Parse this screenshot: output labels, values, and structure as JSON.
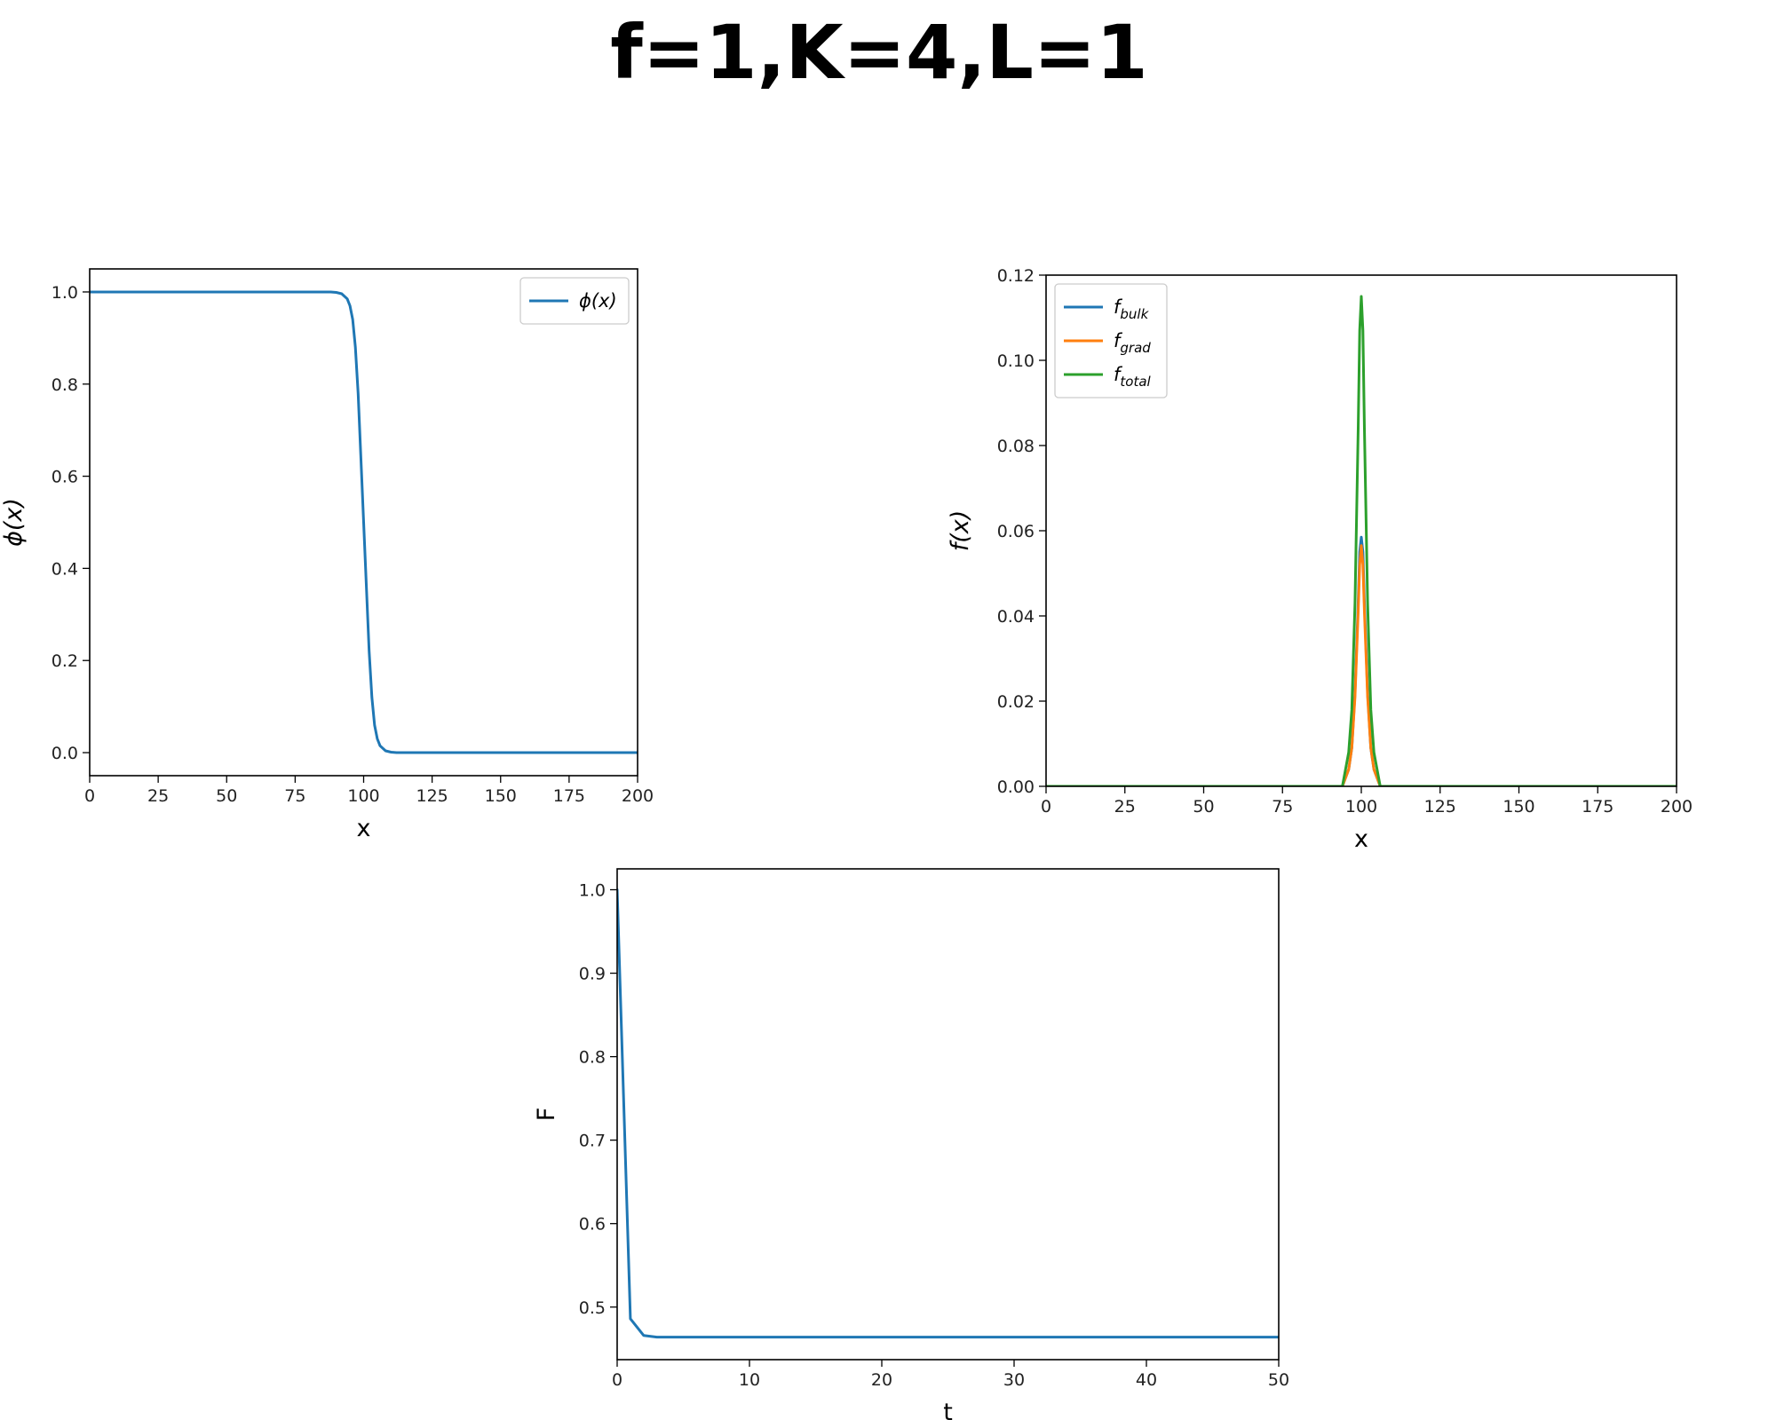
{
  "title": "f=1,K=4,L=1",
  "colors": {
    "blue": "#1f77b4",
    "orange": "#ff7f0e",
    "green": "#2ca02c"
  },
  "chart_data": [
    {
      "id": "phi",
      "type": "line",
      "xlabel": "x",
      "ylabel": "ϕ(x)",
      "xlim": [
        0,
        200
      ],
      "ylim": [
        -0.05,
        1.05
      ],
      "xticks": [
        0,
        25,
        50,
        75,
        100,
        125,
        150,
        175,
        200
      ],
      "xtick_labels": [
        "0",
        "25",
        "50",
        "75",
        "100",
        "125",
        "150",
        "175",
        "200"
      ],
      "yticks": [
        0.0,
        0.2,
        0.4,
        0.6,
        0.8,
        1.0
      ],
      "ytick_labels": [
        "0.0",
        "0.2",
        "0.4",
        "0.6",
        "0.8",
        "1.0"
      ],
      "legend": {
        "position": "upper right"
      },
      "series": [
        {
          "name": "ϕ(x)",
          "name_main": "ϕ(x)",
          "name_sub": "",
          "color": "#1f77b4",
          "x": [
            0,
            88,
            90,
            92,
            94,
            95,
            96,
            97,
            98,
            99,
            100,
            101,
            102,
            103,
            104,
            105,
            106,
            108,
            110,
            112,
            200
          ],
          "y": [
            1.0,
            1.0,
            0.999,
            0.996,
            0.985,
            0.97,
            0.94,
            0.88,
            0.78,
            0.64,
            0.5,
            0.36,
            0.22,
            0.12,
            0.06,
            0.03,
            0.015,
            0.004,
            0.001,
            0.0,
            0.0
          ]
        }
      ]
    },
    {
      "id": "energy-density",
      "type": "line",
      "xlabel": "x",
      "ylabel": "f(x)",
      "xlim": [
        0,
        200
      ],
      "ylim": [
        0,
        0.12
      ],
      "xticks": [
        0,
        25,
        50,
        75,
        100,
        125,
        150,
        175,
        200
      ],
      "xtick_labels": [
        "0",
        "25",
        "50",
        "75",
        "100",
        "125",
        "150",
        "175",
        "200"
      ],
      "yticks": [
        0.0,
        0.02,
        0.04,
        0.06,
        0.08,
        0.1,
        0.12
      ],
      "ytick_labels": [
        "0.00",
        "0.02",
        "0.04",
        "0.06",
        "0.08",
        "0.10",
        "0.12"
      ],
      "legend": {
        "position": "upper left"
      },
      "series": [
        {
          "name": "f_bulk",
          "name_main": "f",
          "name_sub": "bulk",
          "color": "#1f77b4",
          "x": [
            0,
            94,
            96,
            97,
            98,
            99,
            99.5,
            100,
            100.5,
            101,
            102,
            103,
            104,
            106,
            200
          ],
          "y": [
            0,
            0.0,
            0.004,
            0.009,
            0.022,
            0.043,
            0.055,
            0.0585,
            0.055,
            0.043,
            0.022,
            0.009,
            0.004,
            0.0,
            0
          ]
        },
        {
          "name": "f_grad",
          "name_main": "f",
          "name_sub": "grad",
          "color": "#ff7f0e",
          "x": [
            0,
            94,
            96,
            97,
            98,
            99,
            99.5,
            100,
            100.5,
            101,
            102,
            103,
            104,
            106,
            200
          ],
          "y": [
            0,
            0.0,
            0.004,
            0.009,
            0.021,
            0.041,
            0.052,
            0.0565,
            0.052,
            0.041,
            0.021,
            0.009,
            0.004,
            0.0,
            0
          ]
        },
        {
          "name": "f_total",
          "name_main": "f",
          "name_sub": "total",
          "color": "#2ca02c",
          "x": [
            0,
            94,
            96,
            97,
            98,
            99,
            99.5,
            100,
            100.5,
            101,
            102,
            103,
            104,
            106,
            200
          ],
          "y": [
            0,
            0.0,
            0.008,
            0.018,
            0.043,
            0.084,
            0.107,
            0.115,
            0.107,
            0.084,
            0.043,
            0.018,
            0.008,
            0.0,
            0
          ]
        }
      ]
    },
    {
      "id": "total-energy",
      "type": "line",
      "xlabel": "t",
      "ylabel": "F",
      "xlim": [
        0,
        50
      ],
      "ylim": [
        0.437,
        1.025
      ],
      "xticks": [
        0,
        10,
        20,
        30,
        40,
        50
      ],
      "xtick_labels": [
        "0",
        "10",
        "20",
        "30",
        "40",
        "50"
      ],
      "yticks": [
        0.5,
        0.6,
        0.7,
        0.8,
        0.9,
        1.0
      ],
      "ytick_labels": [
        "0.5",
        "0.6",
        "0.7",
        "0.8",
        "0.9",
        "1.0"
      ],
      "legend": null,
      "series": [
        {
          "name": "",
          "name_main": "",
          "name_sub": "",
          "color": "#1f77b4",
          "x": [
            0,
            1,
            2,
            3,
            4,
            50
          ],
          "y": [
            1.0,
            0.486,
            0.466,
            0.464,
            0.464,
            0.464
          ]
        }
      ]
    }
  ]
}
